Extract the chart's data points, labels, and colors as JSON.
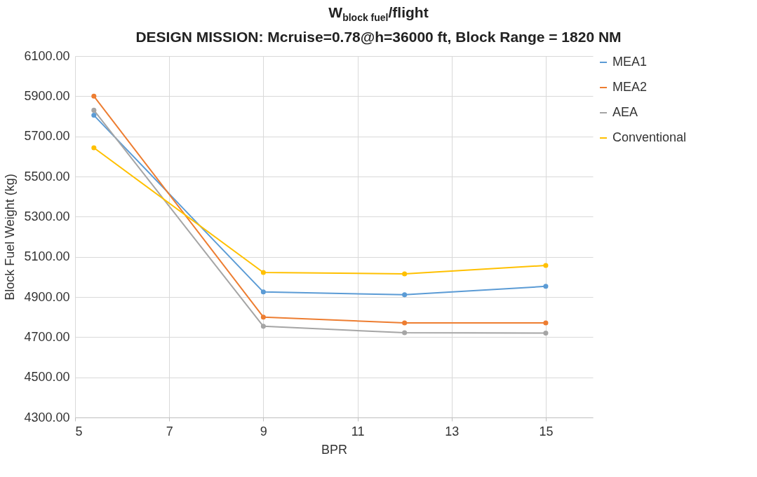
{
  "chart_data": {
    "type": "line",
    "title": "W$_{block fuel}$/flight",
    "subtitle": "DESIGN MISSION: Mcruise=0.78@h=36000 ft, Block Range = 1820 NM",
    "xlabel": "BPR",
    "ylabel": "Block Fuel Weight (kg)",
    "x": [
      5.4,
      9,
      12,
      15
    ],
    "series": [
      {
        "name": "MEA1",
        "color": "#5b9bd5",
        "values": [
          5805,
          4925,
          4911,
          4953
        ]
      },
      {
        "name": "MEA2",
        "color": "#ed7d31",
        "values": [
          5900,
          4800,
          4771,
          4771
        ]
      },
      {
        "name": "AEA",
        "color": "#a5a5a5",
        "values": [
          5830,
          4754,
          4722,
          4720
        ]
      },
      {
        "name": "Conventional",
        "color": "#ffc000",
        "values": [
          5643,
          5022,
          5015,
          5057
        ]
      }
    ],
    "xlim": [
      5,
      16
    ],
    "xticks": [
      5,
      7,
      9,
      11,
      13,
      15
    ],
    "ylim": [
      4300,
      6100
    ],
    "yticks": [
      {
        "value": 4300,
        "label": "4300.00"
      },
      {
        "value": 4500,
        "label": "4500.00"
      },
      {
        "value": 4700,
        "label": "4700.00"
      },
      {
        "value": 4900,
        "label": "4900.00"
      },
      {
        "value": 5100,
        "label": "5100.00"
      },
      {
        "value": 5300,
        "label": "5300.00"
      },
      {
        "value": 5500,
        "label": "5500.00"
      },
      {
        "value": 5700,
        "label": "5700.00"
      },
      {
        "value": 5900,
        "label": "5900.00"
      },
      {
        "value": 6100,
        "label": "6100.00"
      }
    ],
    "grid": true,
    "legend": "right",
    "marker": "circle",
    "line_style": "solid"
  }
}
